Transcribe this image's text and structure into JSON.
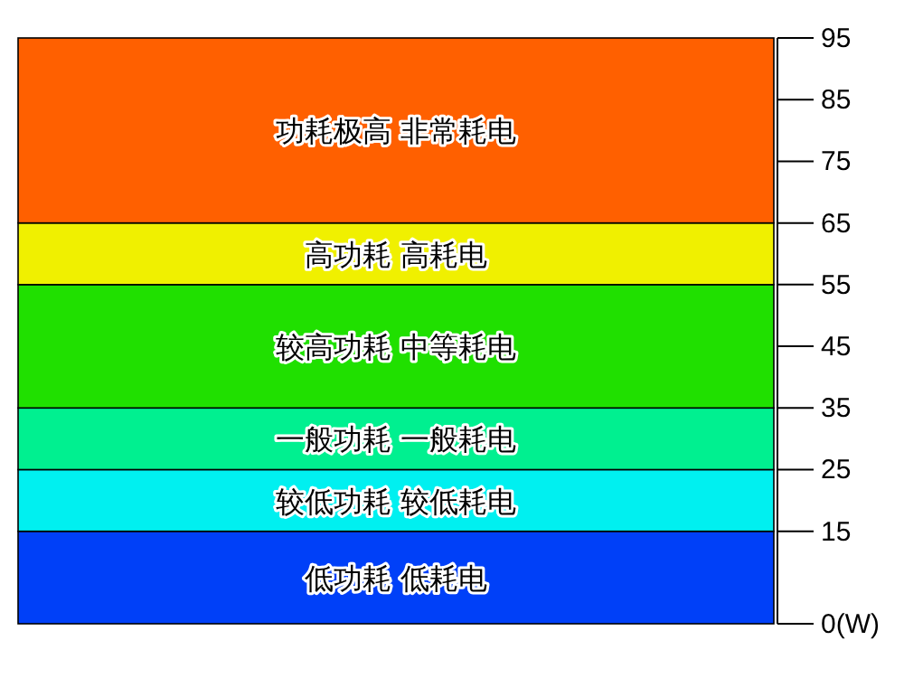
{
  "chart_data": {
    "type": "bar",
    "stacked": true,
    "categories": [
      null
    ],
    "series": [
      {
        "name": "低功耗  低耗电",
        "color": "#0040f8",
        "values": [
          15
        ]
      },
      {
        "name": "较低功耗  较低耗电",
        "color": "#00f0f0",
        "values": [
          10
        ]
      },
      {
        "name": "一般功耗  一般耗电",
        "color": "#00f090",
        "values": [
          10
        ]
      },
      {
        "name": "较高功耗  中等耗电",
        "color": "#20e000",
        "values": [
          20
        ]
      },
      {
        "name": "高功耗  高耗电",
        "color": "#f0f000",
        "values": [
          10
        ]
      },
      {
        "name": "功耗极高  非常耗电",
        "color": "#ff6000",
        "values": [
          30
        ]
      }
    ],
    "ylim": [
      0,
      95
    ],
    "yticks": [
      {
        "value": 0,
        "label": "0(W)"
      },
      15,
      25,
      35,
      45,
      55,
      65,
      75,
      85,
      95
    ],
    "legend": false
  }
}
